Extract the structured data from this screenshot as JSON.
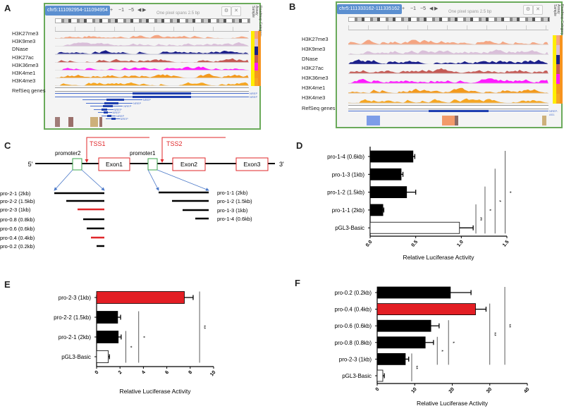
{
  "panels": {
    "A": "A",
    "B": "B",
    "C": "C",
    "D": "D",
    "E": "E",
    "F": "F"
  },
  "browserA": {
    "locus": "chr5:111092954-111094954",
    "nav": [
      "+",
      "−1",
      "−5",
      "◀",
      "▶"
    ],
    "spans": "One pixel spans 2.5 bp",
    "controls": [
      "⚙",
      "✕"
    ],
    "side_labels": [
      "Sample",
      "Assay",
      "Roadmap Category"
    ],
    "tracks": [
      {
        "label": "H3K27me3",
        "color": "#f4a582"
      },
      {
        "label": "H3K9me3",
        "color": "#d9bfd9"
      },
      {
        "label": "DNase",
        "color": "#1b1f8a"
      },
      {
        "label": "H3K27ac",
        "color": "#c45a55"
      },
      {
        "label": "H3K36me3",
        "color": "#ff1aff"
      },
      {
        "label": "H3K4me1",
        "color": "#f39a1e"
      },
      {
        "label": "H3K4me3",
        "color": "#f5a623"
      }
    ],
    "genes_label": "RefSeq genes",
    "gene_name": "NREP"
  },
  "browserB": {
    "locus": "chr5:111333162-111335162",
    "nav": [
      "+",
      "−1",
      "−5",
      "◀",
      "▶"
    ],
    "spans": "One pixel spans 2.5 bp",
    "controls": [
      "⚙",
      "✕"
    ],
    "side_labels": [
      "Sample",
      "Assay",
      "Roadmap Category"
    ],
    "tracks": [
      {
        "label": "H3K27me3",
        "color": "#f4a582"
      },
      {
        "label": "H3K9me3",
        "color": "#d9bfd9"
      },
      {
        "label": "DNase",
        "color": "#1b1f8a"
      },
      {
        "label": "H3K27ac",
        "color": "#c45a55"
      },
      {
        "label": "H3K36me3",
        "color": "#ff1aff"
      },
      {
        "label": "H3K4me1",
        "color": "#f39a1e"
      },
      {
        "label": "H3K4me3",
        "color": "#f5a623"
      }
    ],
    "genes_label": "RefSeq genes",
    "gene_name": "NREP-AS1"
  },
  "diagram": {
    "five_prime": "5'",
    "three_prime": "3'",
    "promoter2": "promoter2",
    "promoter1": "promoter1",
    "tss1": "TSS1",
    "tss2": "TSS2",
    "exons": [
      "Exon1",
      "Exon2",
      "Exon3"
    ],
    "left_constructs": [
      {
        "label": "pro-2-1 (2kb)",
        "highlight": false
      },
      {
        "label": "pro-2-2 (1.5kb)",
        "highlight": false
      },
      {
        "label": "pro-2-3 (1kb)",
        "highlight": true
      },
      {
        "label": "pro-0.8 (0.8kb)",
        "highlight": false
      },
      {
        "label": "pro-0.6 (0.6kb)",
        "highlight": false
      },
      {
        "label": "pro-0.4 (0.4kb)",
        "highlight": true
      },
      {
        "label": "pro-0.2 (0.2kb)",
        "highlight": false
      }
    ],
    "right_constructs": [
      {
        "label": "pro-1-1 (2kb)"
      },
      {
        "label": "pro-1-2 (1.5kb)"
      },
      {
        "label": "pro-1-3 (1kb)"
      },
      {
        "label": "pro-1-4 (0.6kb)"
      }
    ],
    "colors": {
      "promoter": "#3aa64a",
      "exon": "#e0272a",
      "tss": "#e0272a",
      "arrow": "#4a78c8",
      "highlight": "#e0272a"
    }
  },
  "chart_data": [
    {
      "panel": "D",
      "type": "bar",
      "orientation": "horizontal",
      "categories": [
        "pro-1-4 (0.6kb)",
        "pro-1-3 (1kb)",
        "pro-1-2 (1.5kb)",
        "pro-1-1 (2kb)",
        "pGL3-Basic"
      ],
      "values": [
        0.47,
        0.34,
        0.4,
        0.14,
        0.98
      ],
      "errors": [
        0.02,
        0.02,
        0.1,
        0.01,
        0.15
      ],
      "colors": [
        "#000000",
        "#000000",
        "#000000",
        "#000000",
        "#ffffff"
      ],
      "xlabel": "Relative Luciferase Activity",
      "xlim": [
        0,
        1.5
      ],
      "xticks": [
        0,
        0.5,
        1.0,
        1.5
      ],
      "xtick_labels": [
        "0.0",
        "0.5",
        "1.0",
        "1.5"
      ],
      "significance": [
        {
          "x": 1.16,
          "from": "pro-1-1 (2kb)",
          "to": "pGL3-Basic",
          "label": "**"
        },
        {
          "x": 1.26,
          "from": "pro-1-2 (1.5kb)",
          "to": "pGL3-Basic",
          "label": "*"
        },
        {
          "x": 1.37,
          "from": "pro-1-3 (1kb)",
          "to": "pGL3-Basic",
          "label": "*"
        },
        {
          "x": 1.48,
          "from": "pro-1-4 (0.6kb)",
          "to": "pGL3-Basic",
          "label": "*"
        }
      ]
    },
    {
      "panel": "E",
      "type": "bar",
      "orientation": "horizontal",
      "categories": [
        "pro-2-3 (1kb)",
        "pro-2-2 (1.5kb)",
        "pro-2-1 (2kb)",
        "pGL3-Basic"
      ],
      "values": [
        7.5,
        1.8,
        1.85,
        1.0
      ],
      "errors": [
        0.75,
        0.25,
        0.25,
        0.1
      ],
      "colors": [
        "#e31e24",
        "#000000",
        "#000000",
        "#ffffff"
      ],
      "xlabel": "Relative Luciferase Activity",
      "xlim": [
        0,
        10
      ],
      "xticks": [
        0,
        2,
        4,
        6,
        8,
        10
      ],
      "xtick_labels": [
        "0",
        "2",
        "4",
        "6",
        "8",
        "10"
      ],
      "significance": [
        {
          "x": 2.5,
          "from": "pro-2-1 (2kb)",
          "to": "pGL3-Basic",
          "label": "*"
        },
        {
          "x": 3.6,
          "from": "pro-2-2 (1.5kb)",
          "to": "pGL3-Basic",
          "label": "*"
        },
        {
          "x": 8.8,
          "from": "pro-2-3 (1kb)",
          "to": "pGL3-Basic",
          "label": "**"
        }
      ]
    },
    {
      "panel": "F",
      "type": "bar",
      "orientation": "horizontal",
      "categories": [
        "pro-0.2 (0.2kb)",
        "pro-0.4 (0.4kb)",
        "pro-0.6 (0.6kb)",
        "pro-0.8 (0.8kb)",
        "pro-2-3 (1kb)",
        "pGL3-Basic"
      ],
      "values": [
        19.5,
        26.2,
        14.3,
        12.8,
        7.5,
        1.5
      ],
      "errors": [
        5.5,
        2.8,
        2.2,
        2.2,
        0.9,
        0.4
      ],
      "colors": [
        "#000000",
        "#e31e24",
        "#000000",
        "#000000",
        "#000000",
        "#ffffff"
      ],
      "xlabel": "Relative Luciferase Activity",
      "xlim": [
        0,
        40
      ],
      "xticks": [
        0,
        10,
        20,
        30,
        40
      ],
      "xtick_labels": [
        "0",
        "10",
        "20",
        "30",
        "40"
      ],
      "significance": [
        {
          "x": 9.2,
          "from": "pro-2-3 (1kb)",
          "to": "pGL3-Basic",
          "label": "**"
        },
        {
          "x": 16,
          "from": "pro-0.8 (0.8kb)",
          "to": "pro-2-3 (1kb)",
          "label": "*"
        },
        {
          "x": 19,
          "from": "pro-0.6 (0.6kb)",
          "to": "pro-2-3 (1kb)",
          "label": "*"
        },
        {
          "x": 30,
          "from": "pro-0.4 (0.4kb)",
          "to": "pro-2-3 (1kb)",
          "label": "**"
        },
        {
          "x": 34,
          "from": "pro-0.2 (0.2kb)",
          "to": "pro-2-3 (1kb)",
          "label": "**"
        }
      ]
    }
  ]
}
